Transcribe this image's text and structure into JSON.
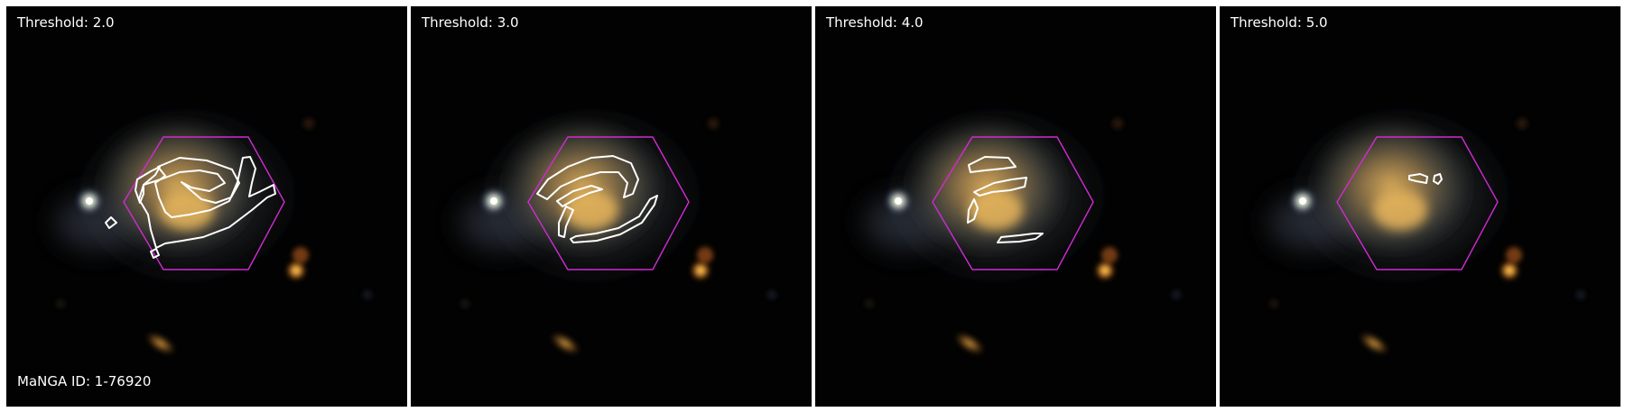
{
  "panels": [
    {
      "threshold_label": "Threshold: 2.0"
    },
    {
      "threshold_label": "Threshold: 3.0"
    },
    {
      "threshold_label": "Threshold: 4.0"
    },
    {
      "threshold_label": "Threshold: 5.0"
    }
  ],
  "galaxy_id_label": "MaNGA ID: 1-76920",
  "colors": {
    "ifu_hexagon": "#d02bd0",
    "contour": "#ffffff",
    "background": "#000000"
  }
}
